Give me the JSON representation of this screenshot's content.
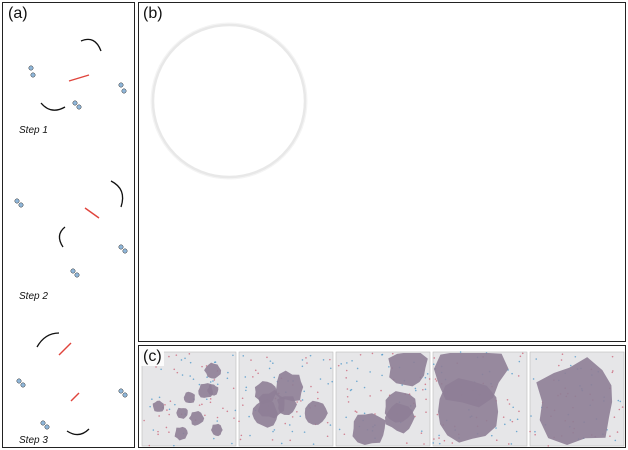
{
  "panel_a": {
    "label": "(a)",
    "steps": [
      "Step 1",
      "Step 2",
      "Step 3"
    ]
  },
  "panel_b": {
    "label": "(b)"
  },
  "panel_c": {
    "label": "(c)"
  },
  "colors": {
    "blue": "#3d8fc6",
    "red": "#c8566c",
    "cluster": "#8e7e96",
    "arrow": "#e0443c"
  }
}
